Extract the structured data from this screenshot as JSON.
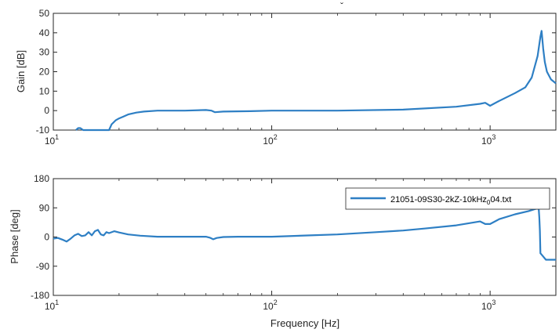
{
  "chart_data": [
    {
      "type": "line",
      "ylabel": "Gain [dB]",
      "xlabel": "",
      "x_scale": "log",
      "xlim": [
        10,
        2000
      ],
      "ylim": [
        -10,
        50
      ],
      "y_ticks": [
        "50",
        "40",
        "30",
        "20",
        "10",
        "0",
        "-10"
      ],
      "x_ticks": [
        {
          "base": "10",
          "exp": "1"
        },
        {
          "base": "10",
          "exp": "2"
        },
        {
          "base": "10",
          "exp": "3"
        }
      ],
      "grid": false,
      "series": [
        {
          "color": "#2e7fc4",
          "x": [
            12.7,
            13.0,
            13.3,
            13.7,
            18,
            18.5,
            19.3,
            20,
            21,
            22,
            24,
            26,
            30,
            40,
            50,
            53,
            55,
            60,
            80,
            100,
            200,
            400,
            700,
            900,
            950,
            1000,
            1100,
            1300,
            1450,
            1550,
            1650,
            1700,
            1720,
            1750,
            1780,
            1820,
            1900,
            2000
          ],
          "y": [
            -10,
            -9,
            -9,
            -10,
            -10,
            -7,
            -5,
            -4,
            -3,
            -2,
            -1,
            -0.5,
            0,
            0,
            0.3,
            0,
            -0.8,
            -0.5,
            -0.3,
            0,
            0,
            0.5,
            2,
            3.5,
            4,
            2.5,
            5,
            9,
            12,
            17,
            28,
            38,
            41,
            32,
            25,
            20,
            16,
            14
          ]
        }
      ]
    },
    {
      "type": "line",
      "ylabel": "Phase [deg]",
      "xlabel": "Frequency [Hz]",
      "x_scale": "log",
      "xlim": [
        10,
        2000
      ],
      "ylim": [
        -180,
        180
      ],
      "y_ticks": [
        "180",
        "90",
        "0",
        "-90",
        "-180"
      ],
      "x_ticks": [
        {
          "base": "10",
          "exp": "1"
        },
        {
          "base": "10",
          "exp": "2"
        },
        {
          "base": "10",
          "exp": "3"
        }
      ],
      "grid": false,
      "legend": {
        "position": "top-right",
        "entries": [
          {
            "pre": "21051-09S30-2kZ-10kHz",
            "sub": "0",
            "post": "04.txt"
          }
        ]
      },
      "series": [
        {
          "color": "#2e7fc4",
          "x": [
            10,
            10.5,
            11,
            11.5,
            12,
            12.5,
            13,
            13.5,
            14,
            14.5,
            15,
            15.5,
            16,
            16.5,
            17,
            17.5,
            18,
            19,
            20,
            22,
            25,
            30,
            40,
            50,
            52,
            54,
            56,
            60,
            70,
            100,
            150,
            200,
            300,
            400,
            500,
            700,
            900,
            950,
            1000,
            1100,
            1300,
            1500,
            1600,
            1650,
            1670,
            1680,
            1690,
            1700,
            1750,
            1800,
            2000
          ],
          "y": [
            -5,
            -3,
            -8,
            -14,
            -5,
            5,
            10,
            3,
            5,
            15,
            5,
            18,
            22,
            8,
            5,
            15,
            12,
            18,
            14,
            8,
            4,
            1,
            1,
            1,
            -2,
            -7,
            -3,
            0,
            1,
            1,
            5,
            8,
            15,
            20,
            26,
            36,
            48,
            40,
            40,
            55,
            70,
            80,
            86,
            88,
            85,
            60,
            20,
            -50,
            -60,
            -70,
            -70
          ]
        }
      ]
    }
  ]
}
